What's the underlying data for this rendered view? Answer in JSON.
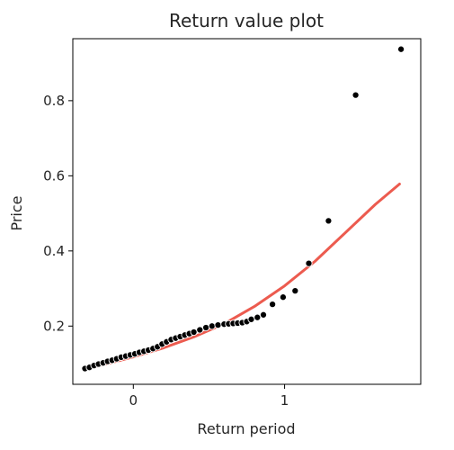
{
  "chart_data": {
    "type": "scatter",
    "title": "Return value plot",
    "xlabel": "Return period",
    "ylabel": "Price",
    "xlim": [
      -0.4,
      1.9
    ],
    "ylim": [
      0.045,
      0.965
    ],
    "xticks": [
      0,
      1
    ],
    "yticks": [
      0.2,
      0.4,
      0.6,
      0.8
    ],
    "ytick_labels": [
      "0.2",
      "0.4",
      "0.6",
      "0.8"
    ],
    "grid": false,
    "series": [
      {
        "kind": "scatter",
        "color": "#000000",
        "x": [
          -0.32,
          -0.29,
          -0.26,
          -0.23,
          -0.2,
          -0.17,
          -0.14,
          -0.11,
          -0.08,
          -0.05,
          -0.02,
          0.01,
          0.04,
          0.07,
          0.1,
          0.13,
          0.16,
          0.19,
          0.22,
          0.25,
          0.28,
          0.31,
          0.34,
          0.37,
          0.4,
          0.44,
          0.48,
          0.52,
          0.56,
          0.6,
          0.63,
          0.66,
          0.69,
          0.72,
          0.75,
          0.78,
          0.82,
          0.86,
          0.92,
          0.99,
          1.07,
          1.16,
          1.29,
          1.47,
          1.77
        ],
        "y": [
          0.087,
          0.09,
          0.095,
          0.099,
          0.102,
          0.106,
          0.109,
          0.113,
          0.117,
          0.12,
          0.123,
          0.126,
          0.13,
          0.133,
          0.136,
          0.14,
          0.145,
          0.152,
          0.158,
          0.164,
          0.168,
          0.172,
          0.176,
          0.18,
          0.184,
          0.19,
          0.196,
          0.2,
          0.203,
          0.205,
          0.206,
          0.207,
          0.208,
          0.209,
          0.212,
          0.218,
          0.223,
          0.23,
          0.258,
          0.277,
          0.294,
          0.367,
          0.48,
          0.815,
          0.937
        ]
      },
      {
        "kind": "line",
        "color": "#ec5b4f",
        "x": [
          -0.33,
          -0.2,
          0.0,
          0.2,
          0.4,
          0.6,
          0.8,
          1.0,
          1.2,
          1.4,
          1.6,
          1.76
        ],
        "y": [
          0.085,
          0.097,
          0.118,
          0.142,
          0.171,
          0.206,
          0.252,
          0.307,
          0.372,
          0.448,
          0.524,
          0.578
        ]
      }
    ]
  }
}
